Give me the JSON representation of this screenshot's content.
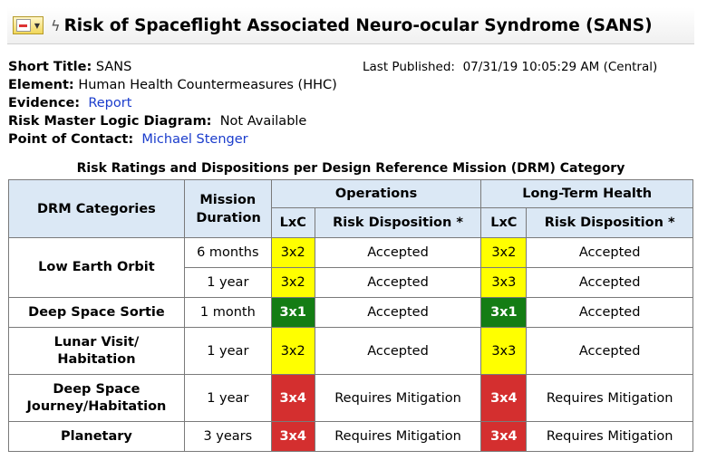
{
  "header": {
    "title": "Risk of Spaceflight Associated Neuro-ocular Syndrome (SANS)"
  },
  "meta": {
    "short_title_label": "Short Title:",
    "short_title": "SANS",
    "element_label": "Element:",
    "element": "Human Health Countermeasures (HHC)",
    "evidence_label": "Evidence:",
    "evidence_link": "Report",
    "rmld_label": "Risk Master Logic Diagram:",
    "rmld": "Not Available",
    "poc_label": "Point of Contact:",
    "poc_link": "Michael Stenger",
    "last_published_label": "Last Published:",
    "last_published": "07/31/19 10:05:29 AM (Central)"
  },
  "table": {
    "caption": "Risk Ratings and Dispositions per Design Reference Mission (DRM) Category",
    "headers": {
      "drm": "DRM Categories",
      "duration": "Mission Duration",
      "operations": "Operations",
      "lth": "Long-Term Health",
      "lxc": "LxC",
      "disposition": "Risk Disposition *"
    },
    "rows": [
      {
        "category": "Low Earth Orbit",
        "duration": "6 months",
        "ops_lxc": "3x2",
        "ops_disp": "Accepted",
        "lth_lxc": "3x2",
        "lth_disp": "Accepted"
      },
      {
        "category": "",
        "duration": "1 year",
        "ops_lxc": "3x2",
        "ops_disp": "Accepted",
        "lth_lxc": "3x3",
        "lth_disp": "Accepted"
      },
      {
        "category": "Deep Space Sortie",
        "duration": "1 month",
        "ops_lxc": "3x1",
        "ops_disp": "Accepted",
        "lth_lxc": "3x1",
        "lth_disp": "Accepted"
      },
      {
        "category_line1": "Lunar Visit/",
        "category_line2": "Habitation",
        "duration": "1 year",
        "ops_lxc": "3x2",
        "ops_disp": "Accepted",
        "lth_lxc": "3x3",
        "lth_disp": "Accepted"
      },
      {
        "category_line1": "Deep Space",
        "category_line2": "Journey/Habitation",
        "duration": "1 year",
        "ops_lxc": "3x4",
        "ops_disp": "Requires Mitigation",
        "lth_lxc": "3x4",
        "lth_disp": "Requires Mitigation"
      },
      {
        "category": "Planetary",
        "duration": "3 years",
        "ops_lxc": "3x4",
        "ops_disp": "Requires Mitigation",
        "lth_lxc": "3x4",
        "lth_disp": "Requires Mitigation"
      }
    ]
  },
  "colors": {
    "yellow": "#ffff00",
    "green": "#147d14",
    "red": "#d42f2f",
    "header_bg": "#dbe8f5",
    "link": "#1a3ccc"
  }
}
